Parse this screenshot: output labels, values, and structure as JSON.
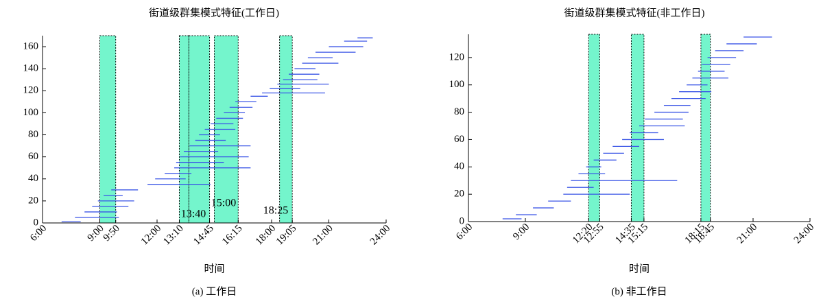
{
  "chart_data": [
    {
      "type": "segments",
      "title": "街道级群集模式特征(工作日)",
      "xlabel": "时间",
      "caption": "(a) 工作日",
      "xlim": [
        6,
        24
      ],
      "ylim": [
        0,
        170
      ],
      "yticks": [
        0,
        20,
        40,
        60,
        80,
        100,
        120,
        140,
        160
      ],
      "xticks": [
        {
          "value": 6,
          "label": "6:00"
        },
        {
          "value": 9,
          "label": "9:00"
        },
        {
          "value": 9.833,
          "label": "9:50"
        },
        {
          "value": 12,
          "label": "12:00"
        },
        {
          "value": 13.167,
          "label": "13:10"
        },
        {
          "value": 14.75,
          "label": "14:45"
        },
        {
          "value": 16.25,
          "label": "16:15"
        },
        {
          "value": 18,
          "label": "18:00"
        },
        {
          "value": 19.083,
          "label": "19:05"
        },
        {
          "value": 21,
          "label": "21:00"
        },
        {
          "value": 24,
          "label": "24:00"
        }
      ],
      "bands": [
        [
          9,
          9.833
        ],
        [
          13.167,
          13.667
        ],
        [
          13.667,
          14.75
        ],
        [
          15,
          16.25
        ],
        [
          18.417,
          19.083
        ]
      ],
      "band_color": "#74f5cc",
      "annotations": [
        "13:40",
        "15:00",
        "18:25"
      ],
      "series": [
        {
          "color": "#3a55e6",
          "y": [
            1,
            5,
            10,
            15,
            20,
            25,
            30,
            35,
            40,
            45,
            50,
            55,
            60,
            65,
            70,
            75,
            80,
            85,
            90,
            95,
            100,
            105,
            110,
            115,
            118,
            122,
            126,
            130,
            135,
            140,
            145,
            150,
            155,
            160,
            165,
            168
          ],
          "start": [
            7.0,
            7.7,
            8.2,
            8.6,
            8.9,
            9.2,
            9.6,
            11.5,
            11.9,
            12.4,
            12.9,
            13.0,
            13.2,
            13.4,
            13.7,
            14.0,
            14.2,
            14.5,
            14.8,
            15.1,
            15.5,
            15.8,
            16.1,
            16.9,
            17.5,
            17.9,
            18.3,
            18.6,
            18.9,
            19.2,
            19.6,
            19.9,
            20.3,
            21.0,
            21.8,
            22.5
          ],
          "end": [
            8.0,
            10.0,
            9.9,
            10.5,
            10.8,
            10.2,
            11.0,
            14.8,
            13.5,
            13.8,
            16.9,
            15.5,
            16.8,
            15.2,
            16.9,
            15.6,
            15.3,
            16.1,
            16.0,
            16.5,
            16.6,
            17.0,
            17.2,
            17.8,
            20.8,
            19.5,
            21.0,
            20.4,
            20.5,
            20.3,
            21.5,
            21.2,
            22.4,
            22.8,
            23.0,
            23.3
          ]
        }
      ]
    },
    {
      "type": "segments",
      "title": "街道级群集模式特征(非工作日)",
      "xlabel": "时间",
      "caption": "(b) 非工作日",
      "xlim": [
        6,
        24
      ],
      "ylim": [
        0,
        137
      ],
      "yticks": [
        0,
        20,
        40,
        60,
        80,
        100,
        120
      ],
      "xticks": [
        {
          "value": 6,
          "label": "6:00"
        },
        {
          "value": 9,
          "label": "9:00"
        },
        {
          "value": 12.333,
          "label": "12:20"
        },
        {
          "value": 12.917,
          "label": "12:55"
        },
        {
          "value": 14.583,
          "label": "14:35"
        },
        {
          "value": 15.25,
          "label": "15:15"
        },
        {
          "value": 18.25,
          "label": "18:15"
        },
        {
          "value": 18.75,
          "label": "18:45"
        },
        {
          "value": 21,
          "label": "21:00"
        },
        {
          "value": 24,
          "label": "24:00"
        }
      ],
      "bands": [
        [
          12.333,
          12.917
        ],
        [
          14.583,
          15.25
        ],
        [
          18.25,
          18.75
        ]
      ],
      "band_color": "#74f5cc",
      "series": [
        {
          "color": "#3a55e6",
          "y": [
            2,
            5,
            10,
            15,
            20,
            25,
            30,
            35,
            40,
            45,
            50,
            55,
            60,
            65,
            70,
            75,
            80,
            85,
            90,
            95,
            100,
            105,
            110,
            115,
            120,
            125,
            130,
            135
          ],
          "start": [
            7.8,
            8.5,
            9.4,
            10.2,
            11.0,
            11.2,
            11.4,
            11.8,
            12.2,
            12.6,
            13.1,
            13.6,
            14.1,
            14.5,
            15.0,
            15.3,
            15.8,
            16.3,
            16.7,
            17.1,
            17.5,
            17.8,
            18.1,
            18.3,
            18.6,
            19.0,
            19.6,
            20.5
          ],
          "end": [
            8.8,
            9.6,
            10.5,
            11.4,
            14.5,
            12.6,
            17.0,
            13.2,
            13.0,
            13.8,
            14.2,
            15.0,
            16.3,
            16.0,
            17.4,
            17.3,
            17.6,
            17.7,
            18.5,
            18.8,
            18.6,
            19.7,
            19.5,
            19.8,
            20.1,
            20.5,
            21.2,
            22.0
          ]
        }
      ]
    }
  ]
}
